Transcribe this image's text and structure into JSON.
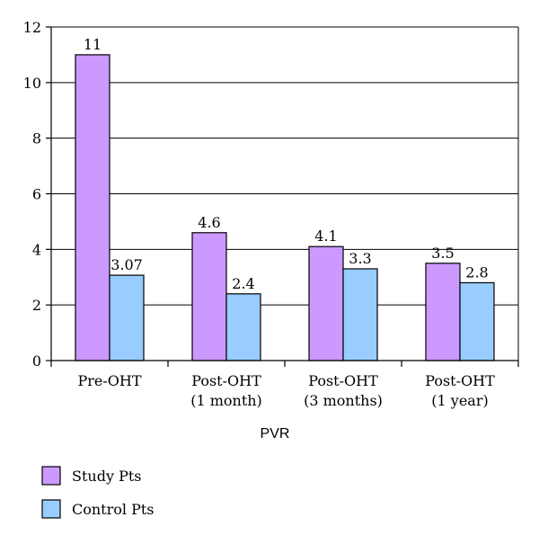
{
  "chart_data": {
    "type": "bar",
    "categories": [
      [
        "Pre-OHT"
      ],
      [
        "Post-OHT",
        "(1 month)"
      ],
      [
        "Post-OHT",
        "(3 months)"
      ],
      [
        "Post-OHT",
        "(1 year)"
      ]
    ],
    "series": [
      {
        "name": "Study Pts",
        "values": [
          11,
          4.6,
          4.1,
          3.5
        ],
        "labels": [
          "11",
          "4.6",
          "4.1",
          "3.5"
        ],
        "color": "#cc99ff"
      },
      {
        "name": "Control Pts",
        "values": [
          3.07,
          2.4,
          3.3,
          2.8
        ],
        "labels": [
          "3.07",
          "2.4",
          "3.3",
          "2.8"
        ],
        "color": "#99ccff"
      }
    ],
    "xlabel": "PVR",
    "ylabel": "",
    "ylim": [
      0,
      12
    ],
    "yticks": [
      0,
      2,
      4,
      6,
      8,
      10,
      12
    ],
    "grid": true,
    "legend_position": "bottom-left"
  }
}
